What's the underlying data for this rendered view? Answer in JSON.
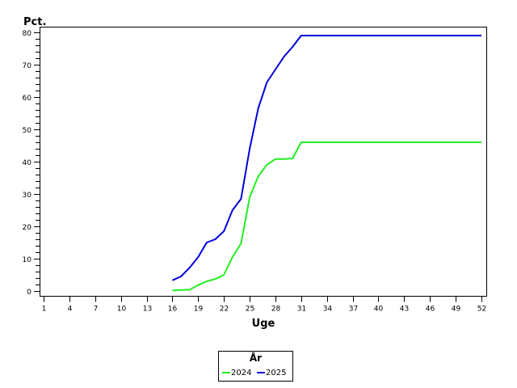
{
  "chart_data": {
    "type": "line",
    "title": "",
    "xlabel": "Uge",
    "ylabel": "Pct.",
    "xlim": [
      1,
      52
    ],
    "ylim": [
      0,
      80
    ],
    "x_ticks": [
      1,
      4,
      7,
      10,
      13,
      16,
      19,
      22,
      25,
      28,
      31,
      34,
      37,
      40,
      43,
      46,
      49,
      52
    ],
    "y_ticks": [
      0,
      10,
      20,
      30,
      40,
      50,
      60,
      70,
      80
    ],
    "y_minor_step": 2,
    "grid": false,
    "legend": {
      "title": "År",
      "position": "bottom-center",
      "entries": [
        "2024",
        "2025"
      ]
    },
    "series": [
      {
        "name": "2024",
        "color": "#22ee22",
        "x": [
          16,
          17,
          18,
          19,
          20,
          21,
          22,
          23,
          24,
          25,
          26,
          27,
          28,
          29,
          30,
          31,
          32,
          33,
          34,
          35,
          36,
          37,
          38,
          39,
          40,
          41,
          42,
          43,
          44,
          45,
          46,
          47,
          48,
          49,
          50,
          51,
          52
        ],
        "values": [
          0.2,
          0.3,
          0.4,
          1.8,
          3.0,
          3.7,
          5.0,
          10.5,
          14.7,
          29.0,
          35.5,
          39.0,
          40.8,
          40.8,
          41.0,
          46.0,
          46.0,
          46.0,
          46.0,
          46.0,
          46.0,
          46.0,
          46.0,
          46.0,
          46.0,
          46.0,
          46.0,
          46.0,
          46.0,
          46.0,
          46.0,
          46.0,
          46.0,
          46.0,
          46.0,
          46.0,
          46.0
        ]
      },
      {
        "name": "2025",
        "color": "#0000dd",
        "x": [
          16,
          17,
          18,
          19,
          20,
          21,
          22,
          23,
          24,
          25,
          26,
          27,
          28,
          29,
          30,
          31,
          32,
          33,
          34,
          35,
          36,
          37,
          38,
          39,
          40,
          41,
          42,
          43,
          44,
          45,
          46,
          47,
          48,
          49,
          50,
          51,
          52
        ],
        "values": [
          3.3,
          4.5,
          7.2,
          10.5,
          15.0,
          16.0,
          18.5,
          25.0,
          28.5,
          44.0,
          56.5,
          64.5,
          68.5,
          72.5,
          75.5,
          79.0,
          79.0,
          79.0,
          79.0,
          79.0,
          79.0,
          79.0,
          79.0,
          79.0,
          79.0,
          79.0,
          79.0,
          79.0,
          79.0,
          79.0,
          79.0,
          79.0,
          79.0,
          79.0,
          79.0,
          79.0,
          79.0
        ]
      }
    ]
  },
  "axes": {
    "y_title": "Pct.",
    "x_title": "Uge"
  },
  "legend": {
    "title": "År",
    "items": [
      {
        "label": "2024",
        "color": "#22ee22"
      },
      {
        "label": "2025",
        "color": "#0000dd"
      }
    ]
  }
}
